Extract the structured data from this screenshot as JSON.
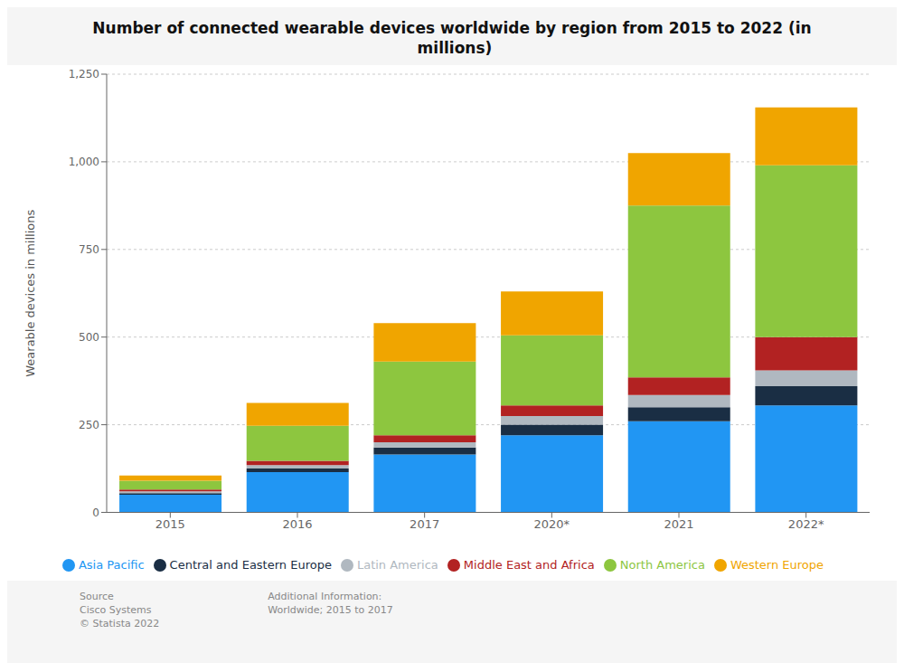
{
  "chart_data": {
    "type": "bar",
    "title": "Number of connected wearable devices worldwide by region from 2015 to 2022 (in\n millions)",
    "ylabel": "Wearable devices in millions",
    "categories": [
      "2015",
      "2016",
      "2017",
      "2020*",
      "2021",
      "2022*"
    ],
    "series": [
      {
        "name": "Asia Pacific",
        "color": "#2196F3",
        "values": [
          50,
          115,
          165,
          220,
          260,
          305
        ]
      },
      {
        "name": "Central and Eastern Europe",
        "color": "#1a2e44",
        "values": [
          5,
          10,
          20,
          30,
          40,
          55
        ]
      },
      {
        "name": "Latin America",
        "color": "#b0b8c0",
        "values": [
          5,
          10,
          15,
          25,
          35,
          45
        ]
      },
      {
        "name": "Middle East and Africa",
        "color": "#b22222",
        "values": [
          5,
          12,
          20,
          30,
          50,
          95
        ]
      },
      {
        "name": "North America",
        "color": "#8dc63f",
        "values": [
          25,
          100,
          210,
          200,
          490,
          490
        ]
      },
      {
        "name": "Western Europe",
        "color": "#f0a500",
        "values": [
          15,
          65,
          110,
          125,
          150,
          165
        ]
      }
    ],
    "stacked": true,
    "ylim": [
      0,
      1250
    ],
    "yticks": [
      0,
      250,
      500,
      750,
      {
        "value": 1000,
        "label": "1,000"
      },
      {
        "value": 1250,
        "label": "1,250"
      }
    ],
    "grid": true,
    "legend": "bottom",
    "annotations": [
      "Source\nCisco Systems\n© Statista 2022",
      "Additional Information:\nWorldwide; 2015 to 2017"
    ]
  }
}
